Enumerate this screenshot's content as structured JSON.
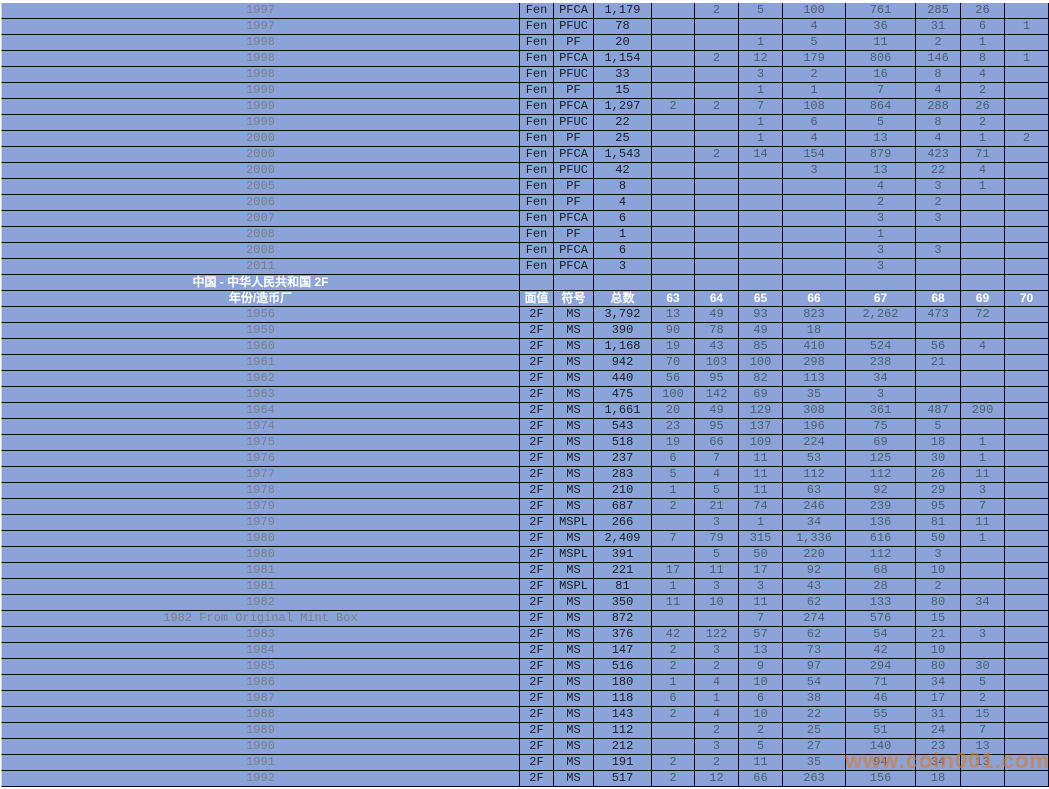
{
  "watermark": {
    "text": "www.coin001.com"
  },
  "colors": {
    "cell_bg": "#8BA3D8",
    "grid_border": "#0A0A10",
    "header_text": "#FFFFFF",
    "year_text": "#7C7F88",
    "strong_text": "#1B1D26",
    "grade_text": "#505C74",
    "watermark_color": "#E27A22"
  },
  "columns": [
    "年份/造币厂",
    "面值",
    "符号",
    "总数",
    "63",
    "64",
    "65",
    "66",
    "67",
    "68",
    "69",
    "70"
  ],
  "sections": [
    {
      "title": null,
      "show_header": false,
      "rows": [
        {
          "year": "1997",
          "denom": "Fen",
          "symbol": "PFCA",
          "total": "1,179",
          "grades": [
            "",
            "2",
            "5",
            "100",
            "761",
            "285",
            "26",
            ""
          ]
        },
        {
          "year": "1997",
          "denom": "Fen",
          "symbol": "PFUC",
          "total": "78",
          "grades": [
            "",
            "",
            "",
            "4",
            "36",
            "31",
            "6",
            "1"
          ]
        },
        {
          "year": "1998",
          "denom": "Fen",
          "symbol": "PF",
          "total": "20",
          "grades": [
            "",
            "",
            "1",
            "5",
            "11",
            "2",
            "1",
            ""
          ]
        },
        {
          "year": "1998",
          "denom": "Fen",
          "symbol": "PFCA",
          "total": "1,154",
          "grades": [
            "",
            "2",
            "12",
            "179",
            "806",
            "146",
            "8",
            "1"
          ]
        },
        {
          "year": "1998",
          "denom": "Fen",
          "symbol": "PFUC",
          "total": "33",
          "grades": [
            "",
            "",
            "3",
            "2",
            "16",
            "8",
            "4",
            ""
          ]
        },
        {
          "year": "1999",
          "denom": "Fen",
          "symbol": "PF",
          "total": "15",
          "grades": [
            "",
            "",
            "1",
            "1",
            "7",
            "4",
            "2",
            ""
          ]
        },
        {
          "year": "1999",
          "denom": "Fen",
          "symbol": "PFCA",
          "total": "1,297",
          "grades": [
            "2",
            "2",
            "7",
            "108",
            "864",
            "288",
            "26",
            ""
          ]
        },
        {
          "year": "1999",
          "denom": "Fen",
          "symbol": "PFUC",
          "total": "22",
          "grades": [
            "",
            "",
            "1",
            "6",
            "5",
            "8",
            "2",
            ""
          ]
        },
        {
          "year": "2000",
          "denom": "Fen",
          "symbol": "PF",
          "total": "25",
          "grades": [
            "",
            "",
            "1",
            "4",
            "13",
            "4",
            "1",
            "2"
          ]
        },
        {
          "year": "2000",
          "denom": "Fen",
          "symbol": "PFCA",
          "total": "1,543",
          "grades": [
            "",
            "2",
            "14",
            "154",
            "879",
            "423",
            "71",
            ""
          ]
        },
        {
          "year": "2000",
          "denom": "Fen",
          "symbol": "PFUC",
          "total": "42",
          "grades": [
            "",
            "",
            "",
            "3",
            "13",
            "22",
            "4",
            ""
          ]
        },
        {
          "year": "2005",
          "denom": "Fen",
          "symbol": "PF",
          "total": "8",
          "grades": [
            "",
            "",
            "",
            "",
            "4",
            "3",
            "1",
            ""
          ]
        },
        {
          "year": "2006",
          "denom": "Fen",
          "symbol": "PF",
          "total": "4",
          "grades": [
            "",
            "",
            "",
            "",
            "2",
            "2",
            "",
            ""
          ]
        },
        {
          "year": "2007",
          "denom": "Fen",
          "symbol": "PFCA",
          "total": "6",
          "grades": [
            "",
            "",
            "",
            "",
            "3",
            "3",
            "",
            ""
          ]
        },
        {
          "year": "2008",
          "denom": "Fen",
          "symbol": "PF",
          "total": "1",
          "grades": [
            "",
            "",
            "",
            "",
            "1",
            "",
            "",
            ""
          ]
        },
        {
          "year": "2008",
          "denom": "Fen",
          "symbol": "PFCA",
          "total": "6",
          "grades": [
            "",
            "",
            "",
            "",
            "3",
            "3",
            "",
            ""
          ]
        },
        {
          "year": "2011",
          "denom": "Fen",
          "symbol": "PFCA",
          "total": "3",
          "grades": [
            "",
            "",
            "",
            "",
            "3",
            "",
            "",
            ""
          ]
        }
      ]
    },
    {
      "title": "中国 - 中华人民共和国 2F",
      "show_header": true,
      "rows": [
        {
          "year": "1956",
          "denom": "2F",
          "symbol": "MS",
          "total": "3,792",
          "grades": [
            "13",
            "49",
            "93",
            "823",
            "2,262",
            "473",
            "72",
            ""
          ]
        },
        {
          "year": "1959",
          "denom": "2F",
          "symbol": "MS",
          "total": "390",
          "grades": [
            "90",
            "78",
            "49",
            "18",
            "",
            "",
            "",
            ""
          ]
        },
        {
          "year": "1960",
          "denom": "2F",
          "symbol": "MS",
          "total": "1,168",
          "grades": [
            "19",
            "43",
            "85",
            "410",
            "524",
            "56",
            "4",
            ""
          ]
        },
        {
          "year": "1961",
          "denom": "2F",
          "symbol": "MS",
          "total": "942",
          "grades": [
            "70",
            "103",
            "100",
            "298",
            "238",
            "21",
            "",
            ""
          ]
        },
        {
          "year": "1962",
          "denom": "2F",
          "symbol": "MS",
          "total": "440",
          "grades": [
            "56",
            "95",
            "82",
            "113",
            "34",
            "",
            "",
            ""
          ]
        },
        {
          "year": "1963",
          "denom": "2F",
          "symbol": "MS",
          "total": "475",
          "grades": [
            "100",
            "142",
            "69",
            "35",
            "3",
            "",
            "",
            ""
          ]
        },
        {
          "year": "1964",
          "denom": "2F",
          "symbol": "MS",
          "total": "1,661",
          "grades": [
            "20",
            "49",
            "129",
            "308",
            "361",
            "487",
            "290",
            ""
          ]
        },
        {
          "year": "1974",
          "denom": "2F",
          "symbol": "MS",
          "total": "543",
          "grades": [
            "23",
            "95",
            "137",
            "196",
            "75",
            "5",
            "",
            ""
          ]
        },
        {
          "year": "1975",
          "denom": "2F",
          "symbol": "MS",
          "total": "518",
          "grades": [
            "19",
            "66",
            "109",
            "224",
            "69",
            "18",
            "1",
            ""
          ]
        },
        {
          "year": "1976",
          "denom": "2F",
          "symbol": "MS",
          "total": "237",
          "grades": [
            "6",
            "7",
            "11",
            "53",
            "125",
            "30",
            "1",
            ""
          ]
        },
        {
          "year": "1977",
          "denom": "2F",
          "symbol": "MS",
          "total": "283",
          "grades": [
            "5",
            "4",
            "11",
            "112",
            "112",
            "26",
            "11",
            ""
          ]
        },
        {
          "year": "1978",
          "denom": "2F",
          "symbol": "MS",
          "total": "210",
          "grades": [
            "1",
            "5",
            "11",
            "63",
            "92",
            "29",
            "3",
            ""
          ]
        },
        {
          "year": "1979",
          "denom": "2F",
          "symbol": "MS",
          "total": "687",
          "grades": [
            "2",
            "21",
            "74",
            "246",
            "239",
            "95",
            "7",
            ""
          ]
        },
        {
          "year": "1979",
          "denom": "2F",
          "symbol": "MSPL",
          "total": "266",
          "grades": [
            "",
            "3",
            "1",
            "34",
            "136",
            "81",
            "11",
            ""
          ]
        },
        {
          "year": "1980",
          "denom": "2F",
          "symbol": "MS",
          "total": "2,409",
          "grades": [
            "7",
            "79",
            "315",
            "1,336",
            "616",
            "50",
            "1",
            ""
          ]
        },
        {
          "year": "1980",
          "denom": "2F",
          "symbol": "MSPL",
          "total": "391",
          "grades": [
            "",
            "5",
            "50",
            "220",
            "112",
            "3",
            "",
            ""
          ]
        },
        {
          "year": "1981",
          "denom": "2F",
          "symbol": "MS",
          "total": "221",
          "grades": [
            "17",
            "11",
            "17",
            "92",
            "68",
            "10",
            "",
            ""
          ]
        },
        {
          "year": "1981",
          "denom": "2F",
          "symbol": "MSPL",
          "total": "81",
          "grades": [
            "1",
            "3",
            "3",
            "43",
            "28",
            "2",
            "",
            ""
          ]
        },
        {
          "year": "1982",
          "denom": "2F",
          "symbol": "MS",
          "total": "350",
          "grades": [
            "11",
            "10",
            "11",
            "62",
            "133",
            "80",
            "34",
            ""
          ]
        },
        {
          "year": "1982 From Original Mint Box",
          "denom": "2F",
          "symbol": "MS",
          "total": "872",
          "grades": [
            "",
            "",
            "7",
            "274",
            "576",
            "15",
            "",
            ""
          ]
        },
        {
          "year": "1983",
          "denom": "2F",
          "symbol": "MS",
          "total": "376",
          "grades": [
            "42",
            "122",
            "57",
            "62",
            "54",
            "21",
            "3",
            ""
          ]
        },
        {
          "year": "1984",
          "denom": "2F",
          "symbol": "MS",
          "total": "147",
          "grades": [
            "2",
            "3",
            "13",
            "73",
            "42",
            "10",
            "",
            ""
          ]
        },
        {
          "year": "1985",
          "denom": "2F",
          "symbol": "MS",
          "total": "516",
          "grades": [
            "2",
            "2",
            "9",
            "97",
            "294",
            "80",
            "30",
            ""
          ]
        },
        {
          "year": "1986",
          "denom": "2F",
          "symbol": "MS",
          "total": "180",
          "grades": [
            "1",
            "4",
            "10",
            "54",
            "71",
            "34",
            "5",
            ""
          ]
        },
        {
          "year": "1987",
          "denom": "2F",
          "symbol": "MS",
          "total": "118",
          "grades": [
            "6",
            "1",
            "6",
            "38",
            "46",
            "17",
            "2",
            ""
          ]
        },
        {
          "year": "1988",
          "denom": "2F",
          "symbol": "MS",
          "total": "143",
          "grades": [
            "2",
            "4",
            "10",
            "22",
            "55",
            "31",
            "15",
            ""
          ]
        },
        {
          "year": "1989",
          "denom": "2F",
          "symbol": "MS",
          "total": "112",
          "grades": [
            "",
            "2",
            "2",
            "25",
            "51",
            "24",
            "7",
            ""
          ]
        },
        {
          "year": "1990",
          "denom": "2F",
          "symbol": "MS",
          "total": "212",
          "grades": [
            "",
            "3",
            "5",
            "27",
            "140",
            "23",
            "13",
            ""
          ]
        },
        {
          "year": "1991",
          "denom": "2F",
          "symbol": "MS",
          "total": "191",
          "grades": [
            "2",
            "2",
            "11",
            "35",
            "94",
            "34",
            "13",
            ""
          ]
        },
        {
          "year": "1992",
          "denom": "2F",
          "symbol": "MS",
          "total": "517",
          "grades": [
            "2",
            "12",
            "66",
            "263",
            "156",
            "18",
            "",
            ""
          ]
        }
      ]
    }
  ]
}
